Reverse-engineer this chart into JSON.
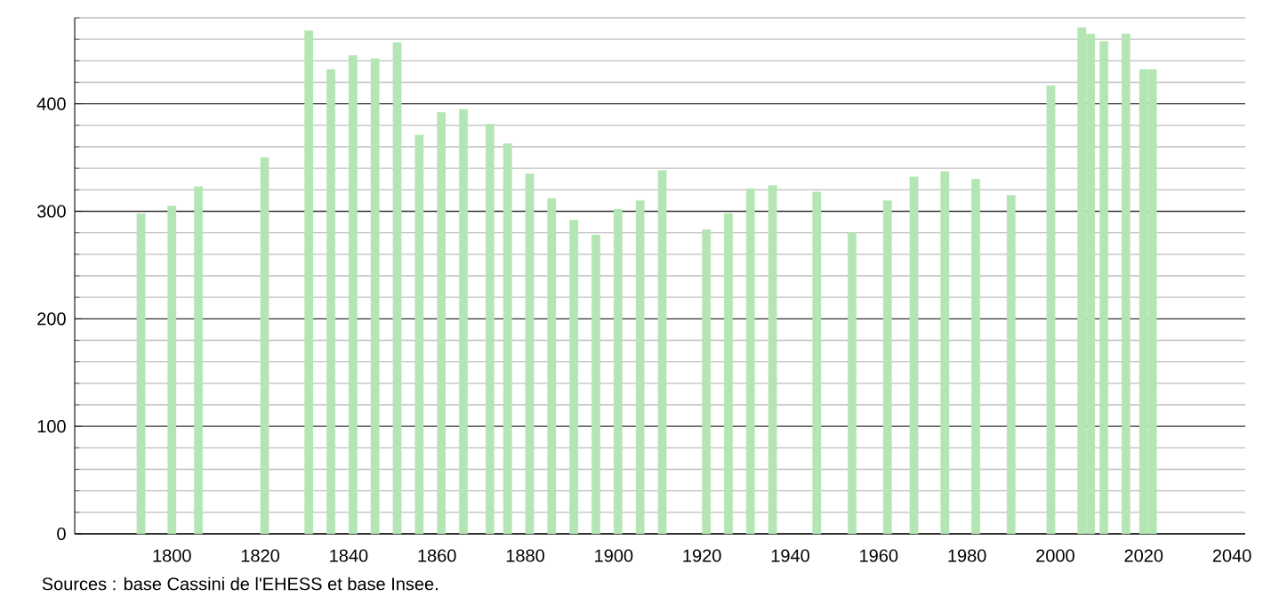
{
  "chart_data": {
    "type": "bar",
    "color": "#b3e6b3",
    "x": [
      1793,
      1800,
      1806,
      1821,
      1831,
      1836,
      1841,
      1846,
      1851,
      1856,
      1861,
      1866,
      1872,
      1876,
      1881,
      1886,
      1891,
      1896,
      1901,
      1906,
      1911,
      1921,
      1926,
      1931,
      1936,
      1946,
      1954,
      1962,
      1968,
      1975,
      1982,
      1990,
      1999,
      2006,
      2008,
      2011,
      2016,
      2020,
      2022
    ],
    "values": [
      298,
      305,
      323,
      350,
      468,
      432,
      445,
      442,
      457,
      371,
      392,
      395,
      381,
      363,
      335,
      312,
      292,
      278,
      302,
      310,
      338,
      283,
      298,
      321,
      324,
      318,
      280,
      310,
      332,
      337,
      330,
      315,
      417,
      471,
      465,
      458,
      465,
      432,
      432
    ],
    "xlim": [
      1778,
      2043
    ],
    "ylim": [
      0,
      480
    ],
    "xticks": [
      1800,
      1820,
      1840,
      1860,
      1880,
      1900,
      1920,
      1940,
      1960,
      1980,
      2000,
      2020,
      2040
    ],
    "yticks": [
      0,
      {
        "value": 20,
        "label": null
      },
      {
        "value": 40,
        "label": null
      },
      {
        "value": 60,
        "label": null
      },
      {
        "value": 80,
        "label": null
      },
      100,
      {
        "value": 120,
        "label": null
      },
      {
        "value": 140,
        "label": null
      },
      {
        "value": 160,
        "label": null
      },
      {
        "value": 180,
        "label": null
      },
      200,
      {
        "value": 220,
        "label": null
      },
      {
        "value": 240,
        "label": null
      },
      {
        "value": 260,
        "label": null
      },
      {
        "value": 280,
        "label": null
      },
      300,
      {
        "value": 320,
        "label": null
      },
      {
        "value": 340,
        "label": null
      },
      {
        "value": 360,
        "label": null
      },
      {
        "value": 380,
        "label": null
      },
      400,
      {
        "value": 420,
        "label": null
      },
      {
        "value": 440,
        "label": null
      },
      {
        "value": 460,
        "label": null
      },
      {
        "value": 480,
        "label": null
      }
    ],
    "grid": "y",
    "annotations": [
      "Sources : base Cassini de l'EHESS et base Insee."
    ]
  }
}
